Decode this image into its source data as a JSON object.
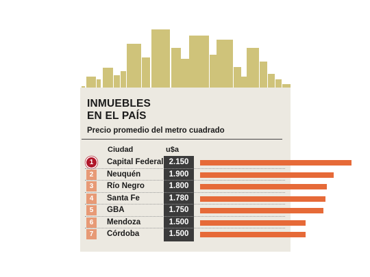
{
  "infographic": {
    "title_line1": "INMUEBLES",
    "title_line2": "EN EL PAÍS",
    "subtitle": "Precio promedio del metro cuadrado",
    "header_city": "Ciudad",
    "header_value": "u$a",
    "colors": {
      "skyline": "#cfc37a",
      "panel": "#ece9e1",
      "bar": "#e66a38",
      "rank_badge": "#e79a76",
      "rank_first": "#b0172a",
      "value_column": "#3b3b3b"
    }
  },
  "chart_data": {
    "type": "bar",
    "orientation": "horizontal",
    "title": "INMUEBLES EN EL PAÍS",
    "subtitle": "Precio promedio del metro cuadrado",
    "xlabel": "u$a",
    "ylabel": "Ciudad",
    "xlim": [
      0,
      2150
    ],
    "grid": false,
    "rows": [
      {
        "rank": "1",
        "city": "Capital Federal",
        "value": 2150,
        "label": "2.150"
      },
      {
        "rank": "2",
        "city": "Neuquén",
        "value": 1900,
        "label": "1.900"
      },
      {
        "rank": "3",
        "city": "Río Negro",
        "value": 1800,
        "label": "1.800"
      },
      {
        "rank": "4",
        "city": "Santa Fe",
        "value": 1780,
        "label": "1.780"
      },
      {
        "rank": "5",
        "city": "GBA",
        "value": 1750,
        "label": "1.750"
      },
      {
        "rank": "6",
        "city": "Mendoza",
        "value": 1500,
        "label": "1.500"
      },
      {
        "rank": "7",
        "city": "Córdoba",
        "value": 1500,
        "label": "1.500"
      }
    ]
  }
}
